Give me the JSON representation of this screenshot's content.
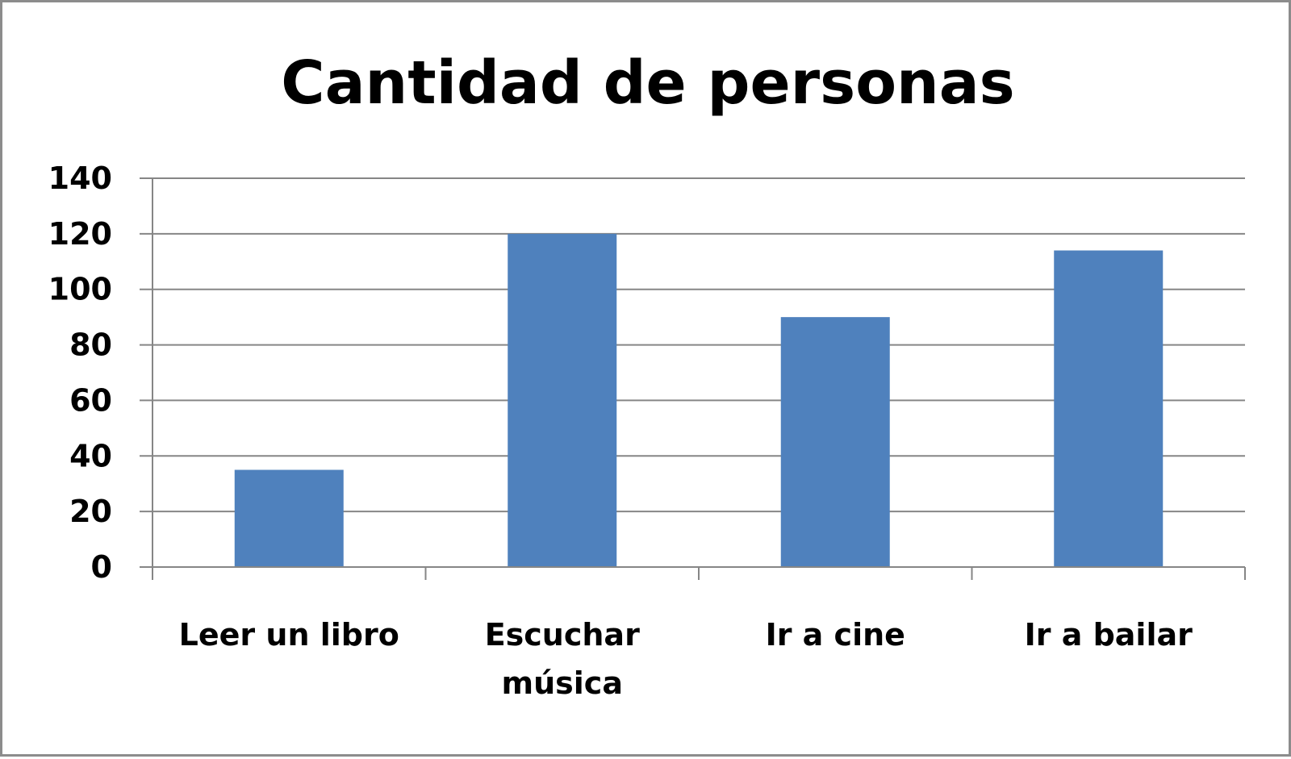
{
  "chart_data": {
    "type": "bar",
    "title": "Cantidad de personas",
    "categories": [
      "Leer un libro",
      "Escuchar música",
      "Ir a cine",
      "Ir a bailar"
    ],
    "category_lines": [
      [
        "Leer un libro"
      ],
      [
        "Escuchar",
        "música"
      ],
      [
        "Ir a cine"
      ],
      [
        "Ir a bailar"
      ]
    ],
    "values": [
      35,
      120,
      90,
      114
    ],
    "ylim": [
      0,
      140
    ],
    "yticks": [
      0,
      20,
      40,
      60,
      80,
      100,
      120,
      140
    ],
    "xlabel": "",
    "ylabel": "",
    "grid": true,
    "legend": false,
    "bar_color": "#4F81BD",
    "grid_color": "#868686"
  }
}
